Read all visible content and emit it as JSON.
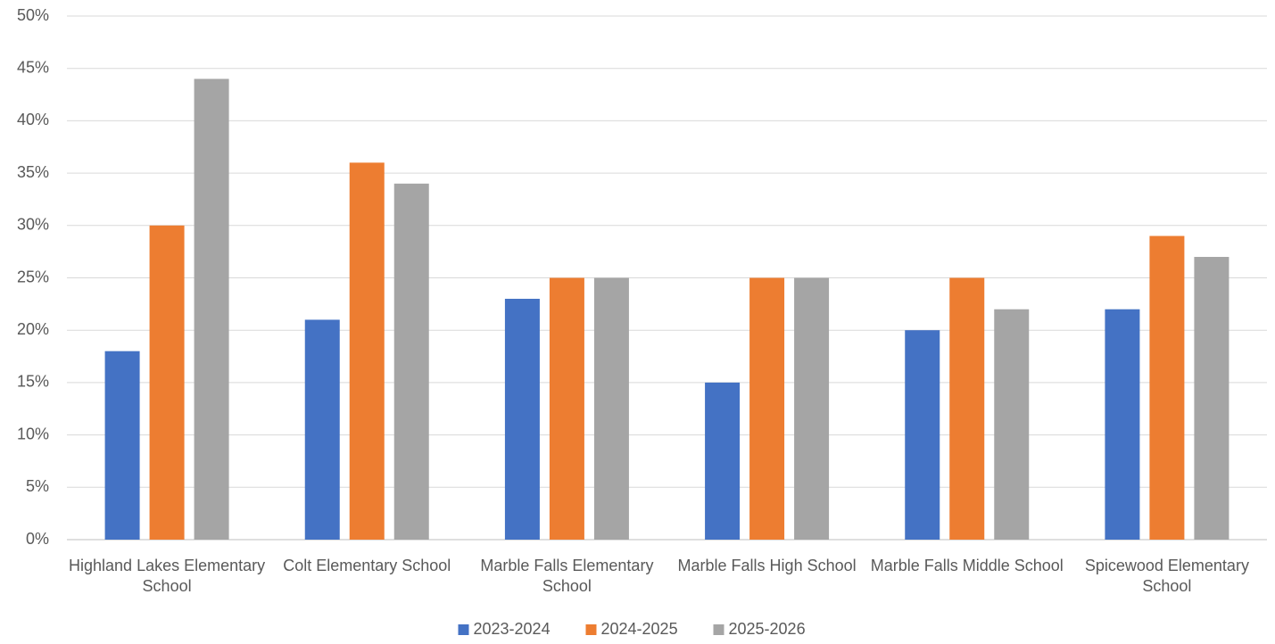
{
  "chart_data": {
    "type": "bar",
    "categories": [
      "Highland Lakes Elementary School",
      "Colt Elementary School",
      "Marble Falls Elementary School",
      "Marble Falls High School",
      "Marble Falls Middle School",
      "Spicewood Elementary School"
    ],
    "series": [
      {
        "name": "2023-2024",
        "color": "#4472c4",
        "values": [
          18,
          21,
          23,
          15,
          20,
          22
        ]
      },
      {
        "name": "2024-2025",
        "color": "#ed7d31",
        "values": [
          30,
          36,
          25,
          25,
          25,
          29
        ]
      },
      {
        "name": "2025-2026",
        "color": "#a5a5a5",
        "values": [
          44,
          34,
          25,
          25,
          22,
          27
        ]
      }
    ],
    "ylim": [
      0,
      50
    ],
    "yticks": [
      {
        "value": 0,
        "label": "0%"
      },
      {
        "value": 5,
        "label": "5%"
      },
      {
        "value": 10,
        "label": "10%"
      },
      {
        "value": 15,
        "label": "15%"
      },
      {
        "value": 20,
        "label": "20%"
      },
      {
        "value": 25,
        "label": "25%"
      },
      {
        "value": 30,
        "label": "30%"
      },
      {
        "value": 35,
        "label": "35%"
      },
      {
        "value": 40,
        "label": "40%"
      },
      {
        "value": 45,
        "label": "45%"
      },
      {
        "value": 50,
        "label": "50%"
      }
    ],
    "grid": true,
    "legend": "bottom"
  }
}
